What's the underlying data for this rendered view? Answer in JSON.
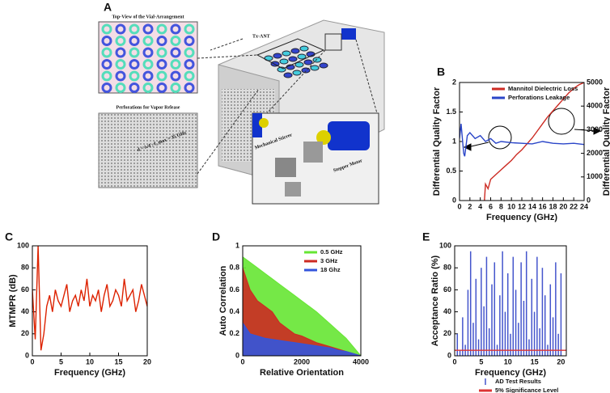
{
  "diagram": {
    "panel_label": "A",
    "top_view_title": "Top-View of the Vial-Arrangement",
    "tx_ant": "Tx-ANT",
    "perforations_title": "Perforations for Vapor Release",
    "perforation_spec": "d < λ/4 ; f_max = 35 GHz",
    "stirrer_label": "Mechanical Stirrer",
    "motor_label": "Stepper Motor"
  },
  "chart_data": [
    {
      "type": "line",
      "panel_label": "B",
      "x_label": "Frequency (GHz)",
      "y_label": "Differential Quality Factor",
      "y2_label": "Differential Quality Factor",
      "xlim": [
        0,
        24
      ],
      "xticks": [
        0,
        2,
        4,
        6,
        8,
        10,
        12,
        14,
        16,
        18,
        20,
        22,
        24
      ],
      "ylim": [
        0,
        2
      ],
      "yticks": [
        0,
        0.5,
        1,
        1.5,
        2
      ],
      "y2lim": [
        0,
        5000
      ],
      "y2ticks": [
        0,
        1000,
        2000,
        3000,
        4000,
        5000
      ],
      "legend": "upper right",
      "series": [
        {
          "name": "Mannitol Dielectric Loss",
          "color": "#cc2a22",
          "axis": "y2",
          "x": [
            4.8,
            5,
            5.5,
            6,
            7,
            8,
            9,
            10,
            11,
            12,
            13,
            14,
            15,
            16,
            17,
            18,
            19,
            20,
            21,
            22,
            23,
            24
          ],
          "values": [
            0,
            700,
            500,
            900,
            1100,
            1300,
            1500,
            1700,
            1950,
            2150,
            2400,
            2650,
            2950,
            3250,
            3550,
            3800,
            4050,
            4300,
            4550,
            4750,
            4900,
            5000
          ]
        },
        {
          "name": "Perforations Leakage",
          "color": "#2a45c8",
          "x": [
            0,
            0.3,
            0.5,
            0.8,
            1,
            1.5,
            2,
            3,
            4,
            5,
            6,
            7,
            8,
            10,
            12,
            14,
            16,
            18,
            20,
            22,
            24
          ],
          "values": [
            1.05,
            1.3,
            1.1,
            0.8,
            0.75,
            1.1,
            1.15,
            1.05,
            1.1,
            1,
            1.05,
            0.97,
            1,
            0.98,
            0.97,
            0.96,
            1,
            0.97,
            0.96,
            0.97,
            0.95
          ]
        }
      ]
    },
    {
      "type": "line",
      "panel_label": "C",
      "x_label": "Frequency (GHz)",
      "y_label": "MTMPR (dB)",
      "xlim": [
        0,
        20
      ],
      "xticks": [
        0,
        5,
        10,
        15,
        20
      ],
      "ylim": [
        0,
        100
      ],
      "yticks": [
        0,
        20,
        40,
        60,
        80,
        100
      ],
      "x": [
        0,
        0.5,
        1,
        1.5,
        2,
        2.5,
        3,
        3.5,
        4,
        4.5,
        5,
        5.5,
        6,
        6.5,
        7,
        7.5,
        8,
        8.5,
        9,
        9.5,
        10,
        10.5,
        11,
        11.5,
        12,
        12.5,
        13,
        13.5,
        14,
        14.5,
        15,
        15.5,
        16,
        16.5,
        17,
        17.5,
        18,
        18.5,
        19,
        19.5,
        20
      ],
      "series": [
        {
          "color": "#dd2200",
          "values": [
            60,
            15,
            100,
            5,
            20,
            45,
            55,
            40,
            60,
            50,
            45,
            55,
            65,
            40,
            50,
            55,
            45,
            60,
            50,
            70,
            45,
            55,
            50,
            60,
            40,
            55,
            65,
            45,
            50,
            60,
            55,
            45,
            70,
            50,
            55,
            60,
            40,
            50,
            65,
            55,
            45
          ]
        }
      ]
    },
    {
      "type": "area",
      "panel_label": "D",
      "x_label": "Relative Orientation",
      "y_label": "Auto Correlation",
      "xlim": [
        0,
        4000
      ],
      "xticks": [
        0,
        2000,
        4000
      ],
      "ylim": [
        0,
        1
      ],
      "yticks": [
        0,
        0.2,
        0.4,
        0.6,
        0.8,
        1
      ],
      "legend": "upper right",
      "x": [
        0,
        250,
        500,
        750,
        1000,
        1250,
        1500,
        1750,
        2000,
        2250,
        2500,
        2750,
        3000,
        3250,
        3500,
        3750,
        4000
      ],
      "series": [
        {
          "name": "0.5 GHz",
          "color": "#66e633",
          "values": [
            0.9,
            0.85,
            0.8,
            0.75,
            0.7,
            0.65,
            0.6,
            0.55,
            0.5,
            0.45,
            0.4,
            0.34,
            0.28,
            0.22,
            0.16,
            0.08,
            0
          ]
        },
        {
          "name": "3 GHz",
          "color": "#cc2a22",
          "values": [
            0.8,
            0.6,
            0.5,
            0.45,
            0.4,
            0.3,
            0.25,
            0.2,
            0.18,
            0.15,
            0.12,
            0.1,
            0.08,
            0.06,
            0.04,
            0.02,
            0
          ]
        },
        {
          "name": "18 Ghz",
          "color": "#3355dd",
          "values": [
            0.3,
            0.2,
            0.18,
            0.16,
            0.15,
            0.14,
            0.13,
            0.12,
            0.11,
            0.1,
            0.09,
            0.08,
            0.07,
            0.05,
            0.04,
            0.02,
            0
          ]
        }
      ]
    },
    {
      "type": "stem",
      "panel_label": "E",
      "x_label": "Frequency (GHz)",
      "y_label": "Acceptance Ratio (%)",
      "xlim": [
        0,
        21
      ],
      "xticks": [
        0,
        5,
        10,
        15,
        20
      ],
      "ylim": [
        0,
        100
      ],
      "yticks": [
        0,
        20,
        40,
        60,
        80,
        100
      ],
      "legend": "below",
      "series": [
        {
          "name": "AD Test Results",
          "color": "#4455cc",
          "x": [
            0.5,
            1,
            1.5,
            2,
            2.5,
            3,
            3.5,
            4,
            4.5,
            5,
            5.5,
            6,
            6.5,
            7,
            7.5,
            8,
            8.5,
            9,
            9.5,
            10,
            10.5,
            11,
            11.5,
            12,
            12.5,
            13,
            13.5,
            14,
            14.5,
            15,
            15.5,
            16,
            16.5,
            17,
            17.5,
            18,
            18.5,
            19,
            19.5,
            20
          ],
          "values": [
            20,
            5,
            35,
            10,
            60,
            95,
            30,
            70,
            15,
            80,
            45,
            90,
            25,
            65,
            85,
            10,
            55,
            95,
            40,
            75,
            20,
            90,
            60,
            30,
            85,
            50,
            95,
            15,
            70,
            40,
            90,
            25,
            80,
            55,
            10,
            65,
            35,
            85,
            20,
            75
          ]
        },
        {
          "name": "5% Significance Level",
          "color": "#dd3333",
          "type": "line",
          "x": [
            0,
            21
          ],
          "values": [
            5,
            5
          ]
        }
      ]
    }
  ]
}
